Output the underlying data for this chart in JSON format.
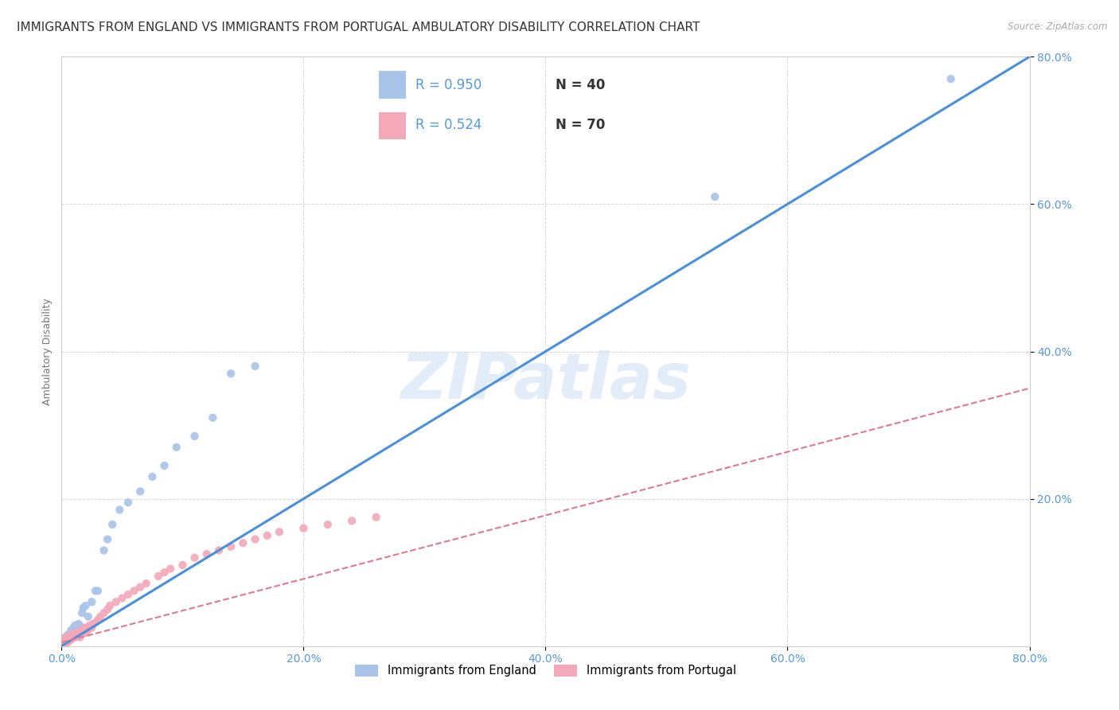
{
  "title": "IMMIGRANTS FROM ENGLAND VS IMMIGRANTS FROM PORTUGAL AMBULATORY DISABILITY CORRELATION CHART",
  "source": "Source: ZipAtlas.com",
  "ylabel": "Ambulatory Disability",
  "xlabel": "",
  "xlim": [
    0,
    0.8
  ],
  "ylim": [
    0,
    0.8
  ],
  "xticks": [
    0.0,
    0.2,
    0.4,
    0.6,
    0.8
  ],
  "yticks": [
    0.2,
    0.4,
    0.6,
    0.8
  ],
  "xticklabels": [
    "0.0%",
    "20.0%",
    "40.0%",
    "60.0%",
    "80.0%"
  ],
  "yticklabels": [
    "20.0%",
    "40.0%",
    "60.0%",
    "80.0%"
  ],
  "england_color": "#a8c4e8",
  "portugal_color": "#f4a8b8",
  "england_line_color": "#4a90d9",
  "portugal_line_color": "#e07890",
  "legend_R_england": "R = 0.950",
  "legend_N_england": "N = 40",
  "legend_R_portugal": "R = 0.524",
  "legend_N_portugal": "N = 70",
  "legend_label_england": "Immigrants from England",
  "legend_label_portugal": "Immigrants from Portugal",
  "watermark": "ZIPatlas",
  "england_scatter_x": [
    0.001,
    0.002,
    0.002,
    0.003,
    0.003,
    0.004,
    0.004,
    0.005,
    0.005,
    0.006,
    0.007,
    0.008,
    0.009,
    0.01,
    0.011,
    0.012,
    0.014,
    0.015,
    0.017,
    0.018,
    0.02,
    0.022,
    0.025,
    0.028,
    0.03,
    0.035,
    0.038,
    0.042,
    0.048,
    0.055,
    0.065,
    0.075,
    0.085,
    0.095,
    0.11,
    0.125,
    0.14,
    0.16,
    0.54,
    0.735
  ],
  "england_scatter_y": [
    0.005,
    0.008,
    0.01,
    0.005,
    0.012,
    0.006,
    0.01,
    0.008,
    0.015,
    0.012,
    0.018,
    0.022,
    0.02,
    0.025,
    0.028,
    0.022,
    0.03,
    0.028,
    0.045,
    0.052,
    0.055,
    0.04,
    0.06,
    0.075,
    0.075,
    0.13,
    0.145,
    0.165,
    0.185,
    0.195,
    0.21,
    0.23,
    0.245,
    0.27,
    0.285,
    0.31,
    0.37,
    0.38,
    0.61,
    0.77
  ],
  "portugal_scatter_x": [
    0.001,
    0.001,
    0.002,
    0.002,
    0.002,
    0.003,
    0.003,
    0.003,
    0.004,
    0.004,
    0.005,
    0.005,
    0.005,
    0.006,
    0.006,
    0.006,
    0.007,
    0.007,
    0.008,
    0.008,
    0.009,
    0.009,
    0.01,
    0.01,
    0.011,
    0.011,
    0.012,
    0.012,
    0.013,
    0.014,
    0.015,
    0.015,
    0.016,
    0.017,
    0.018,
    0.019,
    0.02,
    0.021,
    0.022,
    0.023,
    0.025,
    0.026,
    0.028,
    0.03,
    0.032,
    0.035,
    0.038,
    0.04,
    0.045,
    0.05,
    0.055,
    0.06,
    0.065,
    0.07,
    0.08,
    0.085,
    0.09,
    0.1,
    0.11,
    0.12,
    0.13,
    0.14,
    0.15,
    0.16,
    0.17,
    0.18,
    0.2,
    0.22,
    0.24,
    0.26
  ],
  "portugal_scatter_y": [
    0.002,
    0.004,
    0.005,
    0.008,
    0.01,
    0.004,
    0.007,
    0.01,
    0.006,
    0.009,
    0.005,
    0.008,
    0.012,
    0.007,
    0.01,
    0.014,
    0.008,
    0.012,
    0.01,
    0.015,
    0.01,
    0.014,
    0.012,
    0.016,
    0.012,
    0.018,
    0.013,
    0.018,
    0.015,
    0.018,
    0.012,
    0.018,
    0.02,
    0.022,
    0.02,
    0.025,
    0.018,
    0.025,
    0.022,
    0.028,
    0.025,
    0.03,
    0.032,
    0.035,
    0.04,
    0.045,
    0.05,
    0.055,
    0.06,
    0.065,
    0.07,
    0.075,
    0.08,
    0.085,
    0.095,
    0.1,
    0.105,
    0.11,
    0.12,
    0.125,
    0.13,
    0.135,
    0.14,
    0.145,
    0.15,
    0.155,
    0.16,
    0.165,
    0.17,
    0.175
  ],
  "england_trendline_x": [
    0.0,
    0.8
  ],
  "england_trendline_y": [
    0.0,
    0.8
  ],
  "portugal_trendline_x": [
    0.0,
    0.8
  ],
  "portugal_trendline_y": [
    0.005,
    0.35
  ],
  "background_color": "#ffffff",
  "grid_color": "#cccccc",
  "tick_color": "#5599dd",
  "ylabel_color": "#777777",
  "title_color": "#333333",
  "source_color": "#aaaaaa",
  "title_fontsize": 11,
  "axis_label_fontsize": 9,
  "tick_fontsize": 10,
  "legend_fontsize": 12,
  "scatter_size": 55
}
